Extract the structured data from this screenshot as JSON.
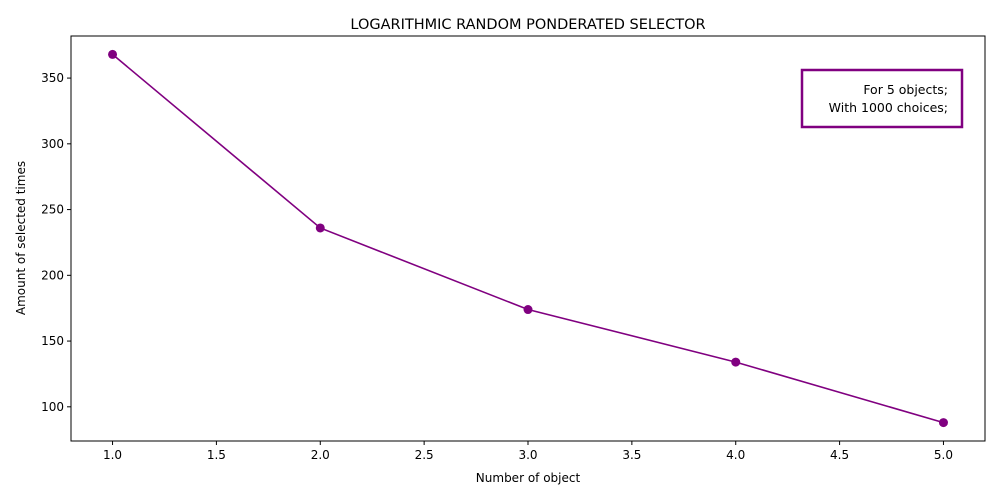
{
  "chart_data": {
    "type": "line",
    "title": "LOGARITHMIC RANDOM PONDERATED SELECTOR",
    "xlabel": "Number of object",
    "ylabel": "Amount of selected times",
    "x": [
      1,
      2,
      3,
      4,
      5
    ],
    "series": [
      {
        "values": [
          368,
          236,
          174,
          134,
          88
        ],
        "color": "#800080"
      }
    ],
    "xlim": [
      0.8,
      5.2
    ],
    "ylim": [
      74,
      382
    ],
    "xticks": [
      1.0,
      1.5,
      2.0,
      2.5,
      3.0,
      3.5,
      4.0,
      4.5,
      5.0
    ],
    "xtick_labels": [
      "1.0",
      "1.5",
      "2.0",
      "2.5",
      "3.0",
      "3.5",
      "4.0",
      "4.5",
      "5.0"
    ],
    "yticks": [
      100,
      150,
      200,
      250,
      300,
      350
    ],
    "ytick_labels": [
      "100",
      "150",
      "200",
      "250",
      "300",
      "350"
    ],
    "grid": false,
    "annotation": {
      "lines": [
        "For 5 objects;",
        "With 1000 choices;"
      ],
      "border_color": "#800080",
      "placement": "top-right"
    }
  }
}
